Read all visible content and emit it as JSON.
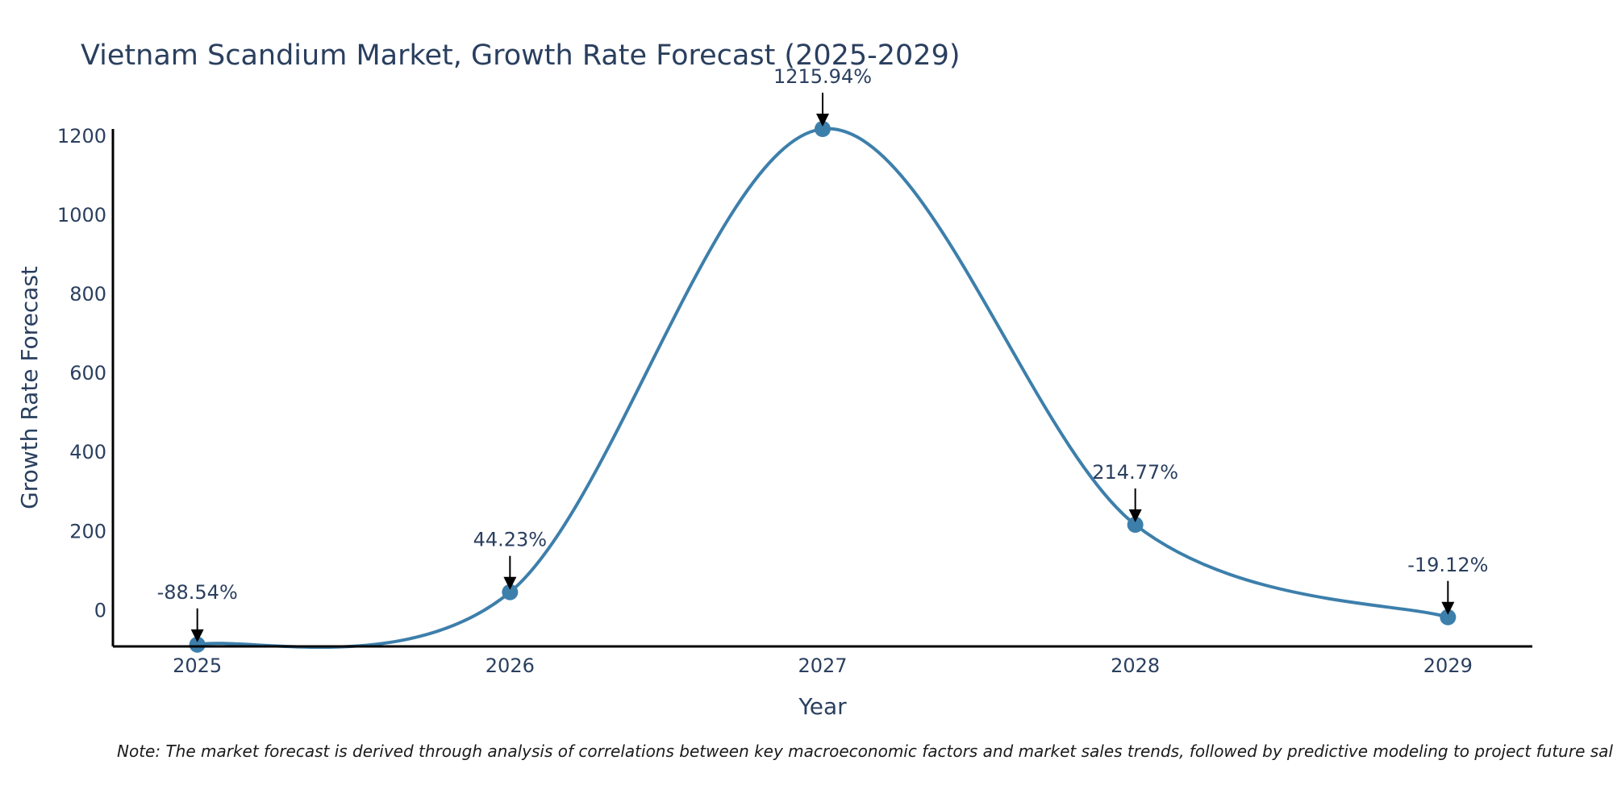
{
  "chart_data": {
    "type": "line",
    "title": "Vietnam Scandium Market, Growth Rate Forecast (2025-2029)",
    "xlabel": "Year",
    "ylabel": "Growth Rate Forecast",
    "categories": [
      "2025",
      "2026",
      "2027",
      "2028",
      "2029"
    ],
    "values": [
      -88.54,
      44.23,
      1215.94,
      214.77,
      -19.12
    ],
    "data_labels": [
      "-88.54%",
      "44.23%",
      "1215.94%",
      "214.77%",
      "-19.12%"
    ],
    "y_ticks": [
      0,
      200,
      400,
      600,
      800,
      1000,
      1200
    ],
    "y_tick_labels": [
      "0",
      "200",
      "400",
      "600",
      "800",
      "1000",
      "1200"
    ],
    "ylim": [
      -93,
      1215.94
    ],
    "xlim": [
      -0.27,
      4.27
    ],
    "line_shape": "spline",
    "grid": false,
    "legend": "none",
    "line_color": "#3d7fab",
    "marker_color": "#3d7fab",
    "arrow_color": "#000000"
  },
  "note": "Note: The market forecast is derived through analysis of correlations between key macroeconomic factors and market sales trends, followed by predictive modeling to project future sales."
}
